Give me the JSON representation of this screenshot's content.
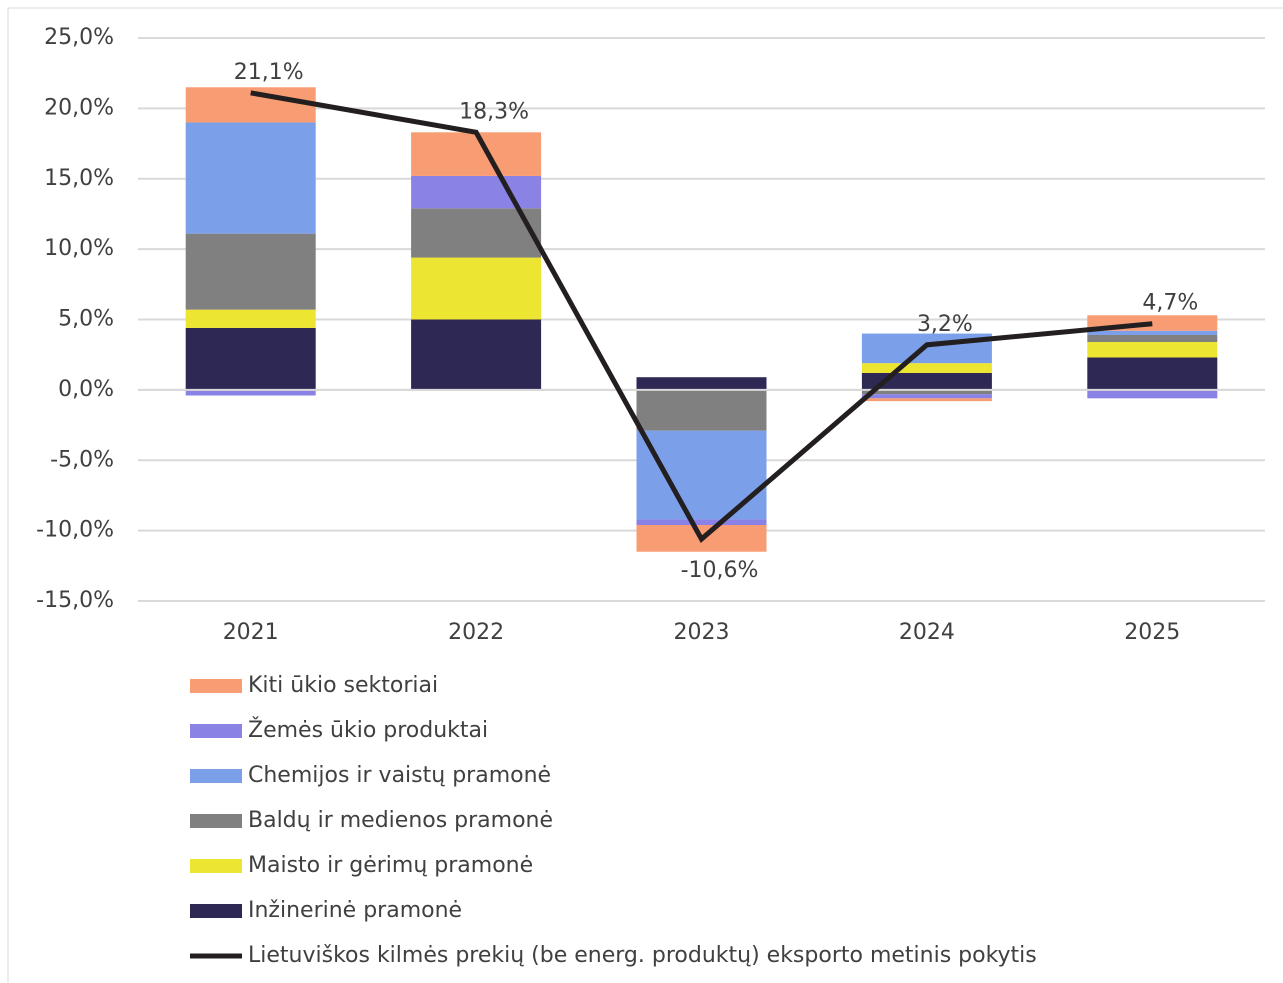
{
  "chart_data": {
    "type": "bar",
    "stacked": true,
    "categories": [
      "2021",
      "2022",
      "2023",
      "2024",
      "2025"
    ],
    "series": [
      {
        "name": "Inžinerinė pramonė",
        "color": "#2e2855",
        "values": [
          4.4,
          5.0,
          0.9,
          1.2,
          2.3
        ]
      },
      {
        "name": "Maisto ir gėrimų pramonė",
        "color": "#ece532",
        "values": [
          1.3,
          4.4,
          0,
          0.7,
          1.1
        ]
      },
      {
        "name": "Baldų ir medienos pramonė",
        "color": "#808080",
        "values": [
          5.4,
          3.5,
          -2.9,
          -0.3,
          0.5
        ]
      },
      {
        "name": "Chemijos ir vaistų pramonė",
        "color": "#7b9fe8",
        "values": [
          7.9,
          0,
          -6.3,
          2.1,
          0.3
        ]
      },
      {
        "name": "Žemės ūkio produktai",
        "color": "#8b82e6",
        "values": [
          -0.4,
          2.3,
          -0.4,
          -0.3,
          -0.6
        ]
      },
      {
        "name": "Kiti ūkio sektoriai",
        "color": "#f89c74",
        "values": [
          2.5,
          3.1,
          -1.9,
          -0.2,
          1.1
        ]
      }
    ],
    "line": {
      "name": "Lietuviškos kilmės prekių (be energ. produktų) eksporto metinis pokytis",
      "color": "#231f20",
      "values": [
        21.1,
        18.3,
        -10.6,
        3.2,
        4.7
      ],
      "value_labels": [
        "21,1%",
        "18,3%",
        "-10,6%",
        "3,2%",
        "4,7%"
      ]
    },
    "ylim": [
      -15,
      25
    ],
    "yticks": [
      {
        "value": -15,
        "label": "-15,0%"
      },
      {
        "value": -10,
        "label": "-10,0%"
      },
      {
        "value": -5,
        "label": "-5,0%"
      },
      {
        "value": 0,
        "label": "0,0%"
      },
      {
        "value": 5,
        "label": "5,0%"
      },
      {
        "value": 10,
        "label": "10,0%"
      },
      {
        "value": 15,
        "label": "15,0%"
      },
      {
        "value": 20,
        "label": "20,0%"
      },
      {
        "value": 25,
        "label": "25,0%"
      }
    ],
    "grid": true,
    "legend": "bottom"
  }
}
